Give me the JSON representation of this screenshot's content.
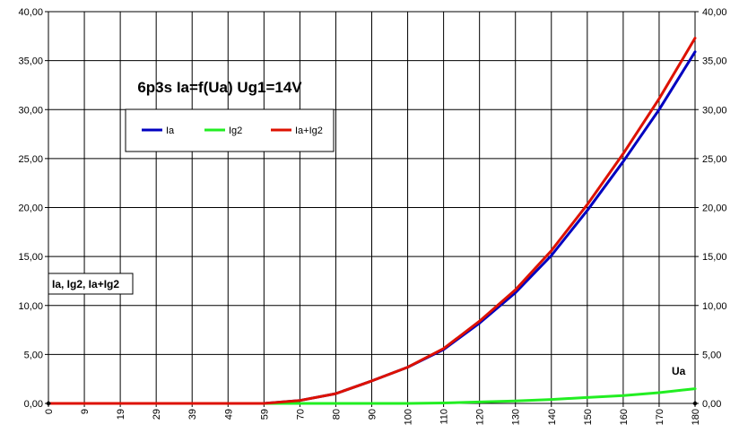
{
  "chart_data": {
    "type": "line",
    "title": "6p3s Ia=f(Ua) Ug1=14V",
    "xlabel": "Ua",
    "ylabel": "Ia, Ig2, Ia+Ig2",
    "x": [
      0,
      9,
      19,
      29,
      39,
      49,
      59,
      70,
      80,
      90,
      100,
      110,
      120,
      130,
      140,
      150,
      160,
      170,
      180
    ],
    "x_tick_labels": [
      "0",
      "9",
      "19",
      "29",
      "39",
      "49",
      "59",
      "70",
      "80",
      "90",
      "100",
      "110",
      "120",
      "130",
      "140",
      "150",
      "160",
      "170",
      "180"
    ],
    "ylim": [
      0,
      40
    ],
    "y_tick_labels": [
      "0,00",
      "5,00",
      "10,00",
      "15,00",
      "20,00",
      "25,00",
      "30,00",
      "35,00",
      "40,00"
    ],
    "grid": true,
    "legend_position": "top-left",
    "series": [
      {
        "name": "Ia",
        "color": "#0000c0",
        "values": [
          0,
          0,
          0,
          0,
          0,
          0,
          0,
          0.3,
          1.0,
          2.3,
          3.7,
          5.5,
          8.2,
          11.3,
          15.1,
          19.7,
          24.7,
          30.0,
          35.9
        ]
      },
      {
        "name": "Ig2",
        "color": "#22ee22",
        "values": [
          0,
          0,
          0,
          0,
          0,
          0,
          0,
          0,
          0,
          0,
          0,
          0.05,
          0.15,
          0.25,
          0.4,
          0.6,
          0.8,
          1.1,
          1.5
        ]
      },
      {
        "name": "Ia+Ig2",
        "color": "#dd1100",
        "values": [
          0,
          0,
          0,
          0,
          0,
          0,
          0,
          0.3,
          1.0,
          2.3,
          3.7,
          5.6,
          8.4,
          11.6,
          15.6,
          20.3,
          25.5,
          31.1,
          37.3
        ]
      }
    ]
  }
}
